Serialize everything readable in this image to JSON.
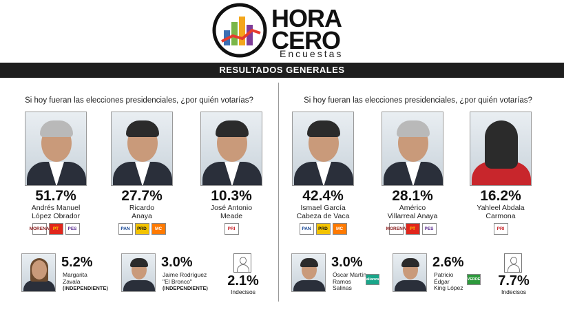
{
  "brand": {
    "line1": "HORA",
    "line2": "CERO",
    "line3": "Encuestas",
    "colors": [
      "#e63b2e",
      "#f3a61c",
      "#7ab648",
      "#3c6fb4",
      "#7e3c98"
    ]
  },
  "banner": "RESULTADOS GENERALES",
  "chart_data": [
    {
      "type": "bar",
      "title": "Si hoy fueran las elecciones presidenciales, ¿por quién votarías?",
      "categories": [
        "Andrés Manuel López Obrador",
        "Ricardo Anaya",
        "José Antonio Meade",
        "Margarita Zavala",
        "Jaime Rodríguez \"El Bronco\"",
        "Indecisos"
      ],
      "series": [
        {
          "values": [
            51.7,
            27.7,
            10.3,
            5.2,
            3.0,
            2.1
          ]
        }
      ],
      "unit": "%",
      "labels": [
        "51.7%",
        "27.7%",
        "10.3%",
        "5.2%",
        "3.0%",
        "2.1%"
      ],
      "main": [
        {
          "pct": "51.7%",
          "name1": "Andrés Manuel",
          "name2": "López Obrador",
          "parties": [
            "MORENA",
            "PT",
            "PES"
          ]
        },
        {
          "pct": "27.7%",
          "name1": "Ricardo",
          "name2": "Anaya",
          "parties": [
            "PAN",
            "PRD",
            "MC"
          ]
        },
        {
          "pct": "10.3%",
          "name1": "José Antonio",
          "name2": "Meade",
          "parties": [
            "PRI"
          ]
        }
      ],
      "minor": [
        {
          "pct": "5.2%",
          "name1": "Margarita",
          "name2": "Zavala",
          "tag": "(INDEPENDIENTE)"
        },
        {
          "pct": "3.0%",
          "name1": "Jaime Rodríguez",
          "name2": "\"El Bronco\"",
          "tag": "(INDEPENDIENTE)"
        }
      ],
      "undecided": {
        "pct": "2.1%",
        "label": "Indecisos"
      }
    },
    {
      "type": "bar",
      "title": "Si hoy fueran las elecciones presidenciales, ¿por quién votarías?",
      "categories": [
        "Ismael García Cabeza de Vaca",
        "Américo Villarreal Anaya",
        "Yahleel Abdala Carmona",
        "Óscar Martín Ramos Salinas",
        "Patricio Édgar King López",
        "Indecisos"
      ],
      "series": [
        {
          "values": [
            42.4,
            28.1,
            16.2,
            3.0,
            2.6,
            7.7
          ]
        }
      ],
      "unit": "%",
      "labels": [
        "42.4%",
        "28.1%",
        "16.2%",
        "3.0%",
        "2.6%",
        "7.7%"
      ],
      "main": [
        {
          "pct": "42.4%",
          "name1": "Ismael García",
          "name2": "Cabeza de Vaca",
          "parties": [
            "PAN",
            "PRD",
            "MC"
          ]
        },
        {
          "pct": "28.1%",
          "name1": "Américo",
          "name2": "Villarreal Anaya",
          "parties": [
            "MORENA",
            "PT",
            "PES"
          ]
        },
        {
          "pct": "16.2%",
          "name1": "Yahleel Abdala",
          "name2": "Carmona",
          "parties": [
            "PRI"
          ]
        }
      ],
      "minor": [
        {
          "pct": "3.0%",
          "name1": "Óscar Martín",
          "name2": "Ramos",
          "name3": "Salinas",
          "party": "alianza"
        },
        {
          "pct": "2.6%",
          "name1": "Patricio",
          "name2": "Édgar",
          "name3": "King López",
          "party": "VERDE"
        }
      ],
      "undecided": {
        "pct": "7.7%",
        "label": "Indecisos"
      }
    }
  ]
}
